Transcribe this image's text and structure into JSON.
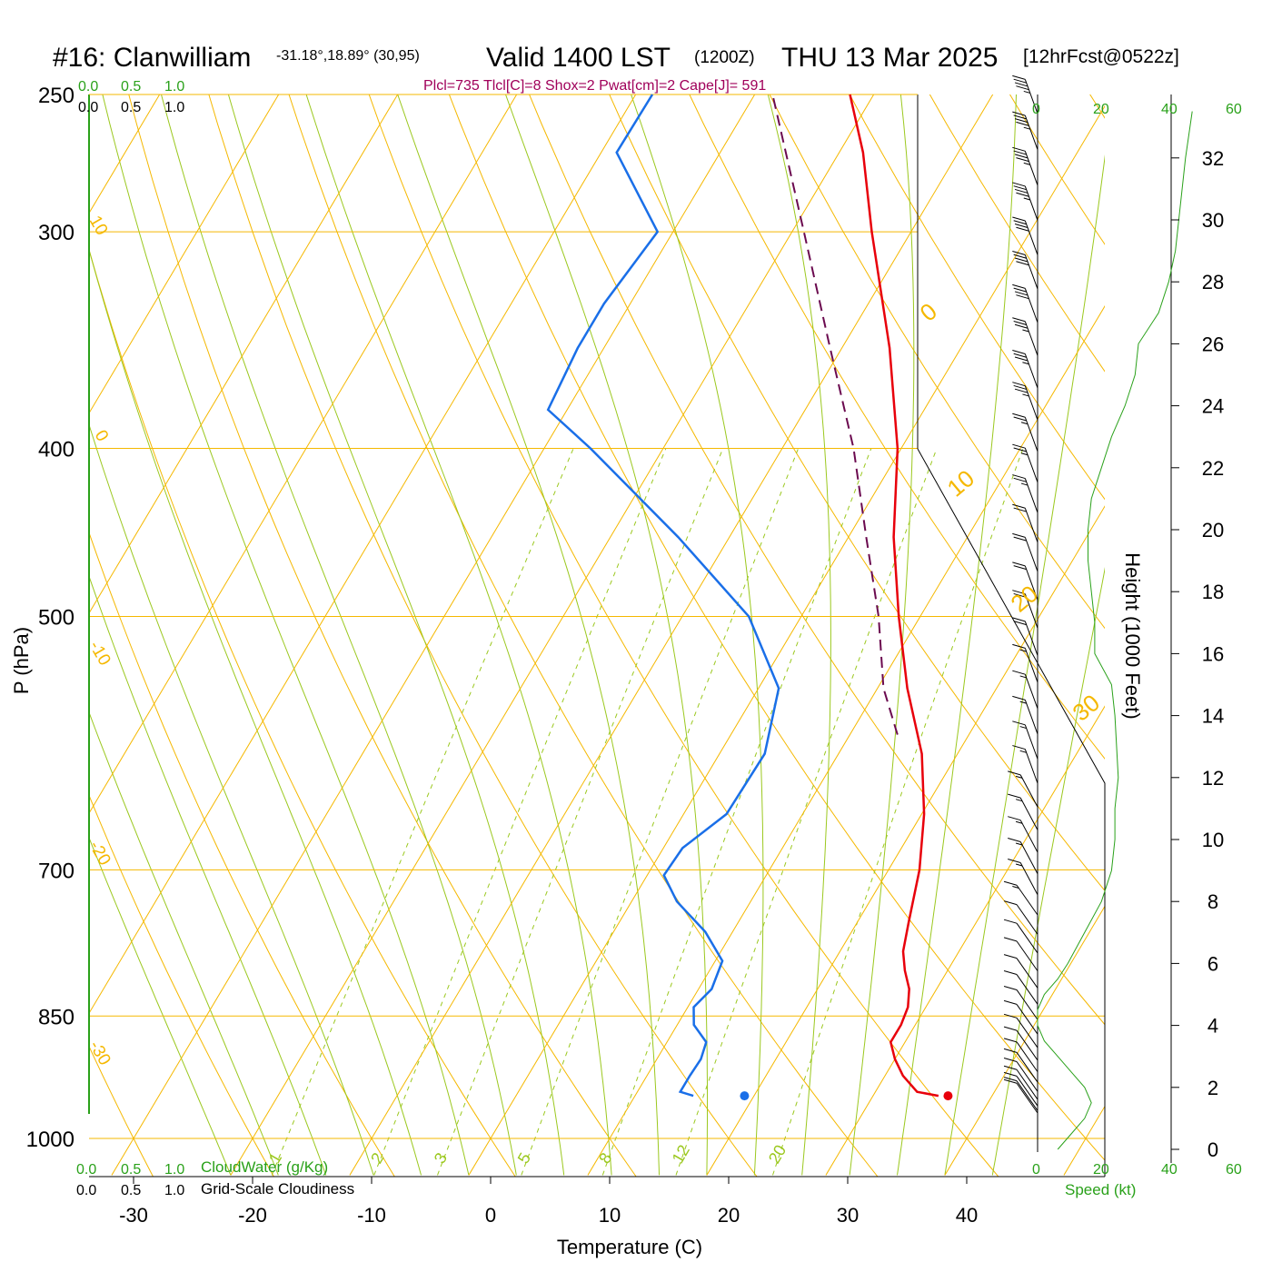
{
  "header": {
    "station": "#16: Clanwilliam",
    "coords": "-31.18°,18.89° (30,95)",
    "valid": "Valid 1400 LST",
    "zulu": "(1200Z)",
    "date": "THU 13 Mar 2025",
    "fcst": "[12hrFcst@0522z]",
    "indices": "Plcl=735 Tlcl[C]=8 Shox=2 Pwat[cm]=2 Cape[J]= 591"
  },
  "colors": {
    "isotherm": "#f5b800",
    "dry_adiabat": "#f5b800",
    "moist_adiabat": "#9bc81e",
    "mixing_ratio": "#9bc81e",
    "temperature": "#e8000b",
    "dewpoint": "#1a6fe8",
    "parcel": "#6b0a4f",
    "green_text": "#2aa11a",
    "indices_text": "#a0005a"
  },
  "labels": {
    "cloud_scale_green": [
      "0.0",
      "0.5",
      "1.0"
    ],
    "cloud_scale_black": [
      "0.0",
      "0.5",
      "1.0"
    ],
    "cloudwater": "CloudWater (g/Kg)",
    "cloudiness": "Grid-Scale Cloudiness",
    "speed_label": "Speed (kt)",
    "speed_ticks": [
      "0",
      "20",
      "40",
      "60"
    ],
    "height_label": "Height (1000 Feet)",
    "height_ticks": [
      "0",
      "2",
      "4",
      "6",
      "8",
      "10",
      "12",
      "14",
      "16",
      "18",
      "20",
      "22",
      "24",
      "26",
      "28",
      "30",
      "32"
    ],
    "mixing_ratio_labels": [
      "1",
      "2",
      "3",
      "5",
      "8",
      "12",
      "20"
    ],
    "theta_labels_left": [
      "10",
      "0",
      "-10",
      "-20",
      "-30"
    ],
    "theta_labels_right": [
      "0",
      "10",
      "20",
      "30"
    ]
  },
  "chart_data": {
    "type": "skew-t",
    "title": "#16: Clanwilliam",
    "xlabel": "Temperature (C)",
    "ylabel": "P (hPa)",
    "x_ticks": [
      -30,
      -20,
      -10,
      0,
      10,
      20,
      30,
      40
    ],
    "y_ticks": [
      250,
      300,
      400,
      500,
      700,
      850,
      1000
    ],
    "ylim": [
      250,
      1050
    ],
    "temperature": [
      {
        "p": 945,
        "t": 35.5
      },
      {
        "p": 940,
        "t": 33.5
      },
      {
        "p": 920,
        "t": 31.5
      },
      {
        "p": 900,
        "t": 30
      },
      {
        "p": 880,
        "t": 28.8
      },
      {
        "p": 860,
        "t": 28.8
      },
      {
        "p": 840,
        "t": 28.5
      },
      {
        "p": 820,
        "t": 27.7
      },
      {
        "p": 800,
        "t": 26.4
      },
      {
        "p": 780,
        "t": 25.3
      },
      {
        "p": 750,
        "t": 24.3
      },
      {
        "p": 700,
        "t": 22.6
      },
      {
        "p": 650,
        "t": 20.2
      },
      {
        "p": 600,
        "t": 17
      },
      {
        "p": 550,
        "t": 12.5
      },
      {
        "p": 500,
        "t": 8.2
      },
      {
        "p": 450,
        "t": 3.8
      },
      {
        "p": 400,
        "t": -0.3
      },
      {
        "p": 350,
        "t": -6
      },
      {
        "p": 300,
        "t": -13.3
      },
      {
        "p": 270,
        "t": -18
      },
      {
        "p": 250,
        "t": -22
      }
    ],
    "dewpoint": [
      {
        "p": 945,
        "t": 14.9
      },
      {
        "p": 940,
        "t": 13.6
      },
      {
        "p": 920,
        "t": 13.6
      },
      {
        "p": 900,
        "t": 13.7
      },
      {
        "p": 880,
        "t": 13.3
      },
      {
        "p": 860,
        "t": 11.4
      },
      {
        "p": 840,
        "t": 10.5
      },
      {
        "p": 820,
        "t": 11.1
      },
      {
        "p": 790,
        "t": 10.6
      },
      {
        "p": 760,
        "t": 7.7
      },
      {
        "p": 730,
        "t": 3.8
      },
      {
        "p": 705,
        "t": 1.4
      },
      {
        "p": 680,
        "t": 1.6
      },
      {
        "p": 650,
        "t": 3.6
      },
      {
        "p": 600,
        "t": 3.8
      },
      {
        "p": 550,
        "t": 1.7
      },
      {
        "p": 500,
        "t": -4.4
      },
      {
        "p": 450,
        "t": -14.3
      },
      {
        "p": 400,
        "t": -26.1
      },
      {
        "p": 380,
        "t": -31.6
      },
      {
        "p": 350,
        "t": -32.2
      },
      {
        "p": 330,
        "t": -32.2
      },
      {
        "p": 300,
        "t": -31.3
      },
      {
        "p": 270,
        "t": -38.7
      },
      {
        "p": 250,
        "t": -38.6
      }
    ],
    "parcel": [
      {
        "p": 585,
        "t": 14
      },
      {
        "p": 550,
        "t": 10.5
      },
      {
        "p": 500,
        "t": 6.5
      },
      {
        "p": 450,
        "t": 1.5
      },
      {
        "p": 400,
        "t": -4
      },
      {
        "p": 350,
        "t": -11
      },
      {
        "p": 300,
        "t": -19
      },
      {
        "p": 250,
        "t": -28.5
      }
    ],
    "surface_temperature": {
      "p": 945,
      "t": 36.3
    },
    "surface_dewpoint": {
      "p": 945,
      "t": 19.2
    },
    "wind_speed_profile": [
      {
        "h": 0,
        "speed": 6
      },
      {
        "h": 0.5,
        "speed": 10
      },
      {
        "h": 1,
        "speed": 14
      },
      {
        "h": 1.5,
        "speed": 16
      },
      {
        "h": 2,
        "speed": 14
      },
      {
        "h": 2.5,
        "speed": 10
      },
      {
        "h": 3,
        "speed": 6
      },
      {
        "h": 3.5,
        "speed": 2
      },
      {
        "h": 4,
        "speed": 0
      },
      {
        "h": 4.5,
        "speed": 0
      },
      {
        "h": 5,
        "speed": 2
      },
      {
        "h": 5.5,
        "speed": 6
      },
      {
        "h": 6,
        "speed": 9
      },
      {
        "h": 7,
        "speed": 14
      },
      {
        "h": 8,
        "speed": 19
      },
      {
        "h": 9,
        "speed": 22
      },
      {
        "h": 10,
        "speed": 23
      },
      {
        "h": 11,
        "speed": 23
      },
      {
        "h": 12,
        "speed": 24
      },
      {
        "h": 14,
        "speed": 23
      },
      {
        "h": 15,
        "speed": 22
      },
      {
        "h": 16,
        "speed": 17
      },
      {
        "h": 17,
        "speed": 17
      },
      {
        "h": 18,
        "speed": 16
      },
      {
        "h": 19,
        "speed": 15
      },
      {
        "h": 20,
        "speed": 15
      },
      {
        "h": 21,
        "speed": 16
      },
      {
        "h": 22,
        "speed": 19
      },
      {
        "h": 23,
        "speed": 22
      },
      {
        "h": 24,
        "speed": 26
      },
      {
        "h": 25,
        "speed": 29
      },
      {
        "h": 26,
        "speed": 30
      },
      {
        "h": 27,
        "speed": 36
      },
      {
        "h": 28,
        "speed": 39
      },
      {
        "h": 29,
        "speed": 41
      },
      {
        "h": 30,
        "speed": 42
      },
      {
        "h": 31,
        "speed": 43
      },
      {
        "h": 32,
        "speed": 44
      },
      {
        "h": 33.5,
        "speed": 46
      }
    ],
    "wind_barbs_speed_kt": [
      12,
      12,
      12,
      12,
      12,
      12,
      12,
      12,
      12,
      12,
      12,
      10,
      10,
      10,
      10,
      10,
      15,
      15,
      15,
      15,
      15,
      15,
      15,
      15,
      15,
      15,
      15,
      20,
      20,
      20,
      20,
      20,
      25,
      25,
      25,
      35,
      35,
      35,
      40,
      40,
      40,
      45,
      45,
      45,
      45
    ]
  }
}
